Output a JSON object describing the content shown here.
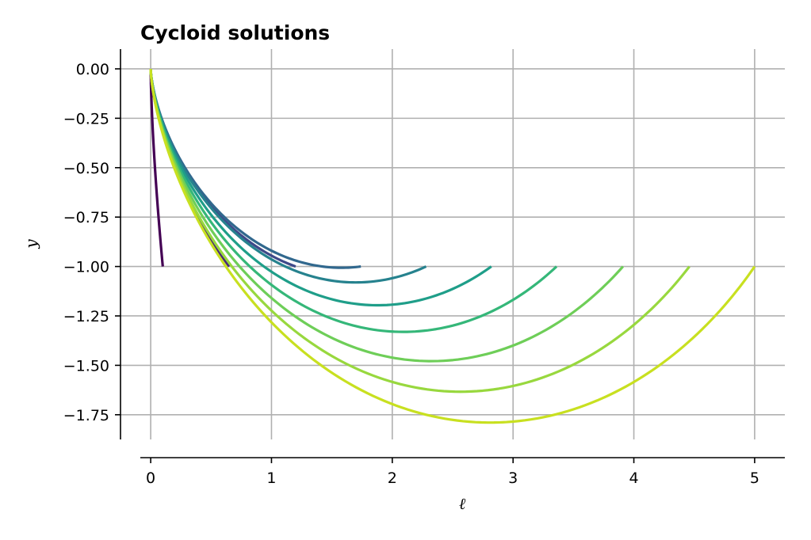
{
  "chart_data": {
    "type": "line",
    "title": "Cycloid solutions",
    "xlabel": "ℓ",
    "ylabel": "y",
    "xlim": [
      -0.25,
      5.25
    ],
    "ylim": [
      -1.875,
      0.1
    ],
    "xticks": [
      0,
      1,
      2,
      3,
      4,
      5
    ],
    "xtick_labels": [
      "0",
      "1",
      "2",
      "3",
      "4",
      "5"
    ],
    "yticks": [
      0.0,
      -0.25,
      -0.5,
      -0.75,
      -1.0,
      -1.25,
      -1.5,
      -1.75
    ],
    "ytick_labels": [
      "0.00",
      "−0.25",
      "−0.50",
      "−0.75",
      "−1.00",
      "−1.25",
      "−1.50",
      "−1.75"
    ],
    "grid": true,
    "colormap": "viridis",
    "series": [
      {
        "color": "#440154",
        "x": [
          0,
          0.1
        ],
        "y": [
          0,
          -1.0
        ]
      },
      {
        "color": "#482878",
        "x": [
          0,
          0.65
        ],
        "y": [
          0,
          -1.0
        ]
      },
      {
        "color": "#3e4989",
        "x": [
          0,
          1.2
        ],
        "y": [
          0,
          -1.0
        ]
      },
      {
        "color": "#31688e",
        "x": [
          0,
          1.74
        ],
        "y": [
          0,
          -1.0
        ]
      },
      {
        "color": "#26828e",
        "x": [
          0,
          2.28
        ],
        "y": [
          0,
          -1.0
        ]
      },
      {
        "color": "#1f9e89",
        "x": [
          0,
          2.82
        ],
        "y": [
          0,
          -1.0
        ]
      },
      {
        "color": "#35b779",
        "x": [
          0,
          3.36
        ],
        "y": [
          0,
          -1.0
        ]
      },
      {
        "color": "#6ece58",
        "x": [
          0,
          3.91
        ],
        "y": [
          0,
          -1.0
        ]
      },
      {
        "color": "#98d83e",
        "x": [
          0,
          4.46
        ],
        "y": [
          0,
          -1.0
        ]
      },
      {
        "color": "#c8e020",
        "x": [
          0,
          5.0
        ],
        "y": [
          0,
          -1.0
        ]
      }
    ]
  }
}
